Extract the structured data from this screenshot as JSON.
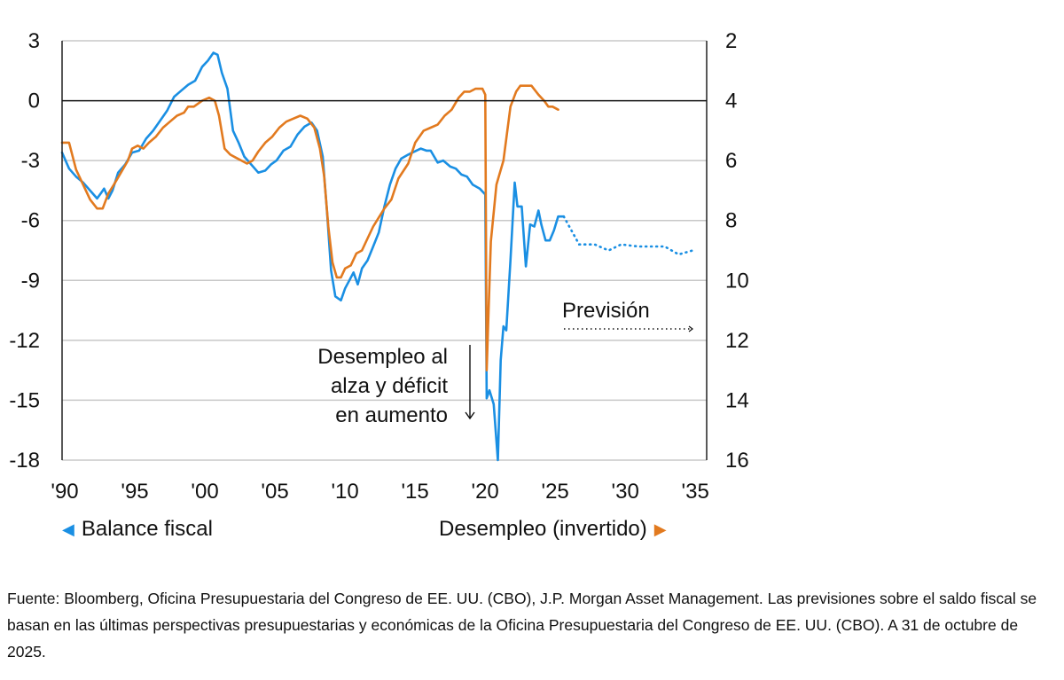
{
  "chart_data": {
    "type": "line",
    "title": "",
    "xlabel": "",
    "x_ticks": [
      "'90",
      "'95",
      "'00",
      "'05",
      "'10",
      "'15",
      "'20",
      "'25",
      "'30",
      "'35"
    ],
    "x_tick_years": [
      1990,
      1995,
      2000,
      2005,
      2010,
      2015,
      2020,
      2025,
      2030,
      2035
    ],
    "xlim": [
      1990,
      2036
    ],
    "y_left": {
      "label": "Balance fiscal",
      "ticks": [
        "3",
        "0",
        "-3",
        "-6",
        "-9",
        "-12",
        "-15",
        "-18"
      ],
      "tick_values": [
        3,
        0,
        -3,
        -6,
        -9,
        -12,
        -15,
        -18
      ],
      "lim": [
        -18,
        3
      ]
    },
    "y_right": {
      "label": "Desempleo (invertido)",
      "ticks": [
        "2",
        "4",
        "6",
        "8",
        "10",
        "12",
        "14",
        "16"
      ],
      "tick_values": [
        2,
        4,
        6,
        8,
        10,
        12,
        14,
        16
      ],
      "lim": [
        2,
        16
      ],
      "inverted": true
    },
    "grid": true,
    "zero_line": 0,
    "series": [
      {
        "name": "Balance fiscal",
        "axis": "left",
        "color": "#1A8FE3",
        "style": "solid",
        "x": [
          1990.0,
          1990.5,
          1991.0,
          1991.5,
          1992.0,
          1992.5,
          1992.8,
          1993.0,
          1993.3,
          1993.6,
          1994.0,
          1994.5,
          1995.0,
          1995.5,
          1996.0,
          1996.5,
          1997.0,
          1997.5,
          1998.0,
          1998.5,
          1999.0,
          1999.5,
          2000.0,
          2000.4,
          2000.8,
          2001.1,
          2001.4,
          2001.8,
          2002.2,
          2002.6,
          2003.0,
          2003.5,
          2004.0,
          2004.5,
          2004.9,
          2005.3,
          2005.8,
          2006.3,
          2006.8,
          2007.3,
          2007.8,
          2008.2,
          2008.6,
          2008.9,
          2009.2,
          2009.5,
          2009.9,
          2010.2,
          2010.5,
          2010.8,
          2011.1,
          2011.4,
          2011.8,
          2012.2,
          2012.6,
          2013.0,
          2013.4,
          2013.8,
          2014.2,
          2014.7,
          2015.0,
          2015.6,
          2016.0,
          2016.3,
          2016.8,
          2017.2,
          2017.7,
          2018.1,
          2018.5,
          2018.9,
          2019.3,
          2019.8,
          2020.2,
          2020.3,
          2020.5,
          2020.8,
          2021.1,
          2021.3,
          2021.5,
          2021.7,
          2022.0,
          2022.3,
          2022.5,
          2022.8,
          2023.1,
          2023.4,
          2023.7,
          2024.0,
          2024.2,
          2024.5,
          2024.8,
          2025.1,
          2025.4,
          2025.8
        ],
        "values": [
          -2.6,
          -3.4,
          -3.8,
          -4.1,
          -4.5,
          -4.9,
          -4.6,
          -4.4,
          -4.9,
          -4.5,
          -3.6,
          -3.2,
          -2.6,
          -2.5,
          -1.9,
          -1.5,
          -1.0,
          -0.5,
          0.2,
          0.5,
          0.8,
          1.0,
          1.7,
          2.0,
          2.4,
          2.3,
          1.4,
          0.6,
          -1.5,
          -2.1,
          -2.8,
          -3.2,
          -3.6,
          -3.5,
          -3.2,
          -3.0,
          -2.5,
          -2.3,
          -1.7,
          -1.3,
          -1.1,
          -1.5,
          -2.8,
          -5.5,
          -8.5,
          -9.8,
          -10.0,
          -9.4,
          -9.0,
          -8.6,
          -9.2,
          -8.4,
          -8.0,
          -7.3,
          -6.6,
          -5.3,
          -4.2,
          -3.4,
          -2.9,
          -2.7,
          -2.6,
          -2.4,
          -2.5,
          -2.5,
          -3.1,
          -3.0,
          -3.3,
          -3.4,
          -3.7,
          -3.8,
          -4.2,
          -4.4,
          -4.7,
          -14.9,
          -14.5,
          -15.2,
          -18.0,
          -13.0,
          -11.3,
          -11.5,
          -8.0,
          -4.1,
          -5.3,
          -5.3,
          -8.3,
          -6.2,
          -6.3,
          -5.5,
          -6.2,
          -7.0,
          -7.0,
          -6.5,
          -5.8,
          -5.8
        ]
      },
      {
        "name": "Balance fiscal (previsión)",
        "axis": "left",
        "color": "#1A8FE3",
        "style": "dotted",
        "x": [
          2025.8,
          2026.9,
          2028.0,
          2029.0,
          2029.9,
          2031.1,
          2032.0,
          2033.0,
          2034.0,
          2035.0
        ],
        "values": [
          -5.8,
          -7.2,
          -7.2,
          -7.5,
          -7.2,
          -7.3,
          -7.3,
          -7.3,
          -7.7,
          -7.5
        ]
      },
      {
        "name": "Desempleo (invertido)",
        "axis": "right",
        "color": "#E27A1F",
        "style": "solid",
        "x": [
          1990.0,
          1990.5,
          1991.0,
          1991.5,
          1992.0,
          1992.5,
          1992.9,
          1993.3,
          1993.7,
          1994.2,
          1994.7,
          1995.0,
          1995.4,
          1995.8,
          1996.2,
          1996.7,
          1997.2,
          1997.7,
          1998.2,
          1998.7,
          1999.0,
          1999.4,
          2000.0,
          2000.5,
          2000.9,
          2001.2,
          2001.6,
          2002.0,
          2002.4,
          2002.8,
          2003.2,
          2003.6,
          2004.0,
          2004.5,
          2005.0,
          2005.5,
          2006.0,
          2006.5,
          2007.0,
          2007.5,
          2008.0,
          2008.4,
          2008.7,
          2009.0,
          2009.3,
          2009.6,
          2009.9,
          2010.2,
          2010.6,
          2011.0,
          2011.4,
          2011.8,
          2012.2,
          2012.6,
          2013.0,
          2013.5,
          2014.0,
          2014.7,
          2015.2,
          2015.8,
          2016.3,
          2016.8,
          2017.3,
          2017.8,
          2018.3,
          2018.7,
          2019.1,
          2019.5,
          2020.0,
          2020.2,
          2020.3,
          2020.4,
          2020.6,
          2021.0,
          2021.5,
          2022.0,
          2022.4,
          2022.7,
          2023.1,
          2023.5,
          2024.0,
          2024.4,
          2024.7,
          2025.0,
          2025.4
        ],
        "values": [
          5.4,
          5.4,
          6.3,
          6.8,
          7.3,
          7.6,
          7.6,
          7.1,
          6.8,
          6.4,
          6.0,
          5.6,
          5.5,
          5.6,
          5.4,
          5.2,
          4.9,
          4.7,
          4.5,
          4.4,
          4.2,
          4.2,
          4.0,
          3.9,
          4.0,
          4.5,
          5.6,
          5.8,
          5.9,
          6.0,
          6.1,
          6.0,
          5.7,
          5.4,
          5.2,
          4.9,
          4.7,
          4.6,
          4.5,
          4.6,
          4.9,
          5.6,
          6.5,
          8.2,
          9.4,
          9.9,
          9.9,
          9.6,
          9.5,
          9.1,
          9.0,
          8.6,
          8.2,
          7.9,
          7.6,
          7.3,
          6.6,
          6.1,
          5.4,
          5.0,
          4.9,
          4.8,
          4.5,
          4.3,
          3.9,
          3.7,
          3.7,
          3.6,
          3.6,
          3.8,
          13.0,
          11.5,
          8.7,
          6.8,
          6.0,
          4.2,
          3.7,
          3.5,
          3.5,
          3.5,
          3.8,
          4.0,
          4.2,
          4.2,
          4.3
        ]
      }
    ],
    "annotations": [
      {
        "text": [
          "Desempleo al",
          "alza y déficit",
          "en aumento"
        ],
        "arrow": "down"
      },
      {
        "text": "Previsión",
        "arrow": "right-dotted"
      }
    ],
    "legend": [
      {
        "label": "Balance fiscal",
        "marker": "left-triangle",
        "color": "#1A8FE3",
        "position": "bottom-left"
      },
      {
        "label": "Desempleo (invertido)",
        "marker": "right-triangle",
        "color": "#E27A1F",
        "position": "bottom-right"
      }
    ]
  },
  "footnote": "Fuente: Bloomberg, Oficina Presupuestaria del Congreso de EE. UU. (CBO), J.P. Morgan Asset Management. Las previsiones sobre el saldo fiscal se basan en las últimas perspectivas presupuestarias y económicas de la Oficina Presupuestaria del Congreso de EE. UU. (CBO). A 31 de octubre de 2025."
}
